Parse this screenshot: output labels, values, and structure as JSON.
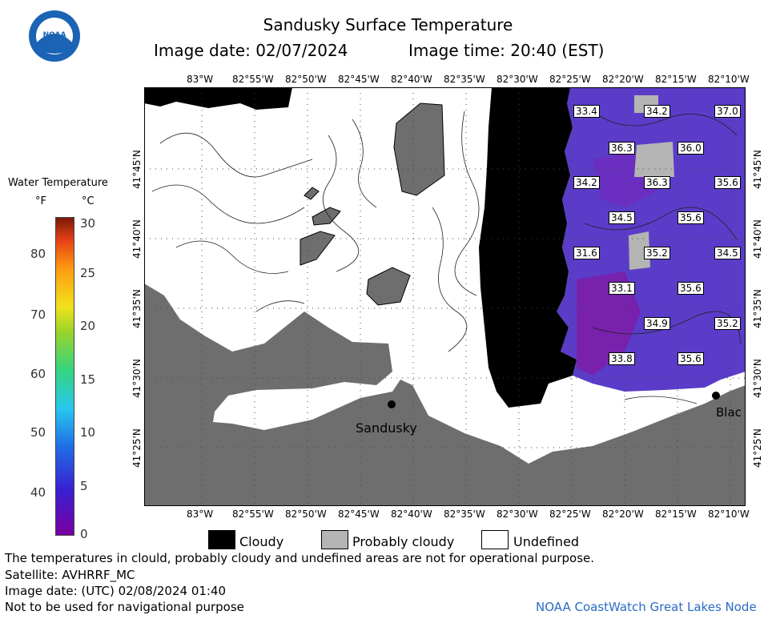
{
  "header": {
    "title": "Sandusky Surface Temperature",
    "image_date": "Image date: 02/07/2024",
    "image_time": "Image time: 20:40 (EST)"
  },
  "logo": {
    "text": "NOAA"
  },
  "colorbar": {
    "title": "Water Temperature",
    "unit_f": "°F",
    "unit_c": "°C",
    "f_ticks": [
      "80",
      "70",
      "60",
      "50",
      "40"
    ],
    "c_ticks": [
      "30",
      "25",
      "20",
      "15",
      "10",
      "5",
      "0"
    ]
  },
  "axes": {
    "lon_labels": [
      "83°W",
      "82°55'W",
      "82°50'W",
      "82°45'W",
      "82°40'W",
      "82°35'W",
      "82°30'W",
      "82°25'W",
      "82°20'W",
      "82°15'W",
      "82°10'W"
    ],
    "lat_labels": [
      "41°45'N",
      "41°40'N",
      "41°35'N",
      "41°30'N",
      "41°25'N"
    ]
  },
  "temperature_labels": [
    "33.4",
    "34.2",
    "37.0",
    "36.3",
    "36.0",
    "34.2",
    "36.3",
    "35.6",
    "34.5",
    "35.6",
    "31.6",
    "35.2",
    "34.5",
    "33.1",
    "35.6",
    "34.9",
    "35.2",
    "33.8",
    "35.6"
  ],
  "places": {
    "sandusky": "Sandusky",
    "blac": "Blac"
  },
  "legend": {
    "cloudy": "Cloudy",
    "probably_cloudy": "Probably cloudy",
    "undefined": "Undefined"
  },
  "footer": {
    "disclaimer": "The temperatures in clould, probably cloudy and undefined areas are not for operational purpose.",
    "satellite": "Satellite: AVHRRF_MC",
    "utc_date": "Image date: (UTC) 02/08/2024  01:40",
    "nav": "Not to be used for navigational purpose",
    "credit": "NOAA CoastWatch Great Lakes Node"
  },
  "colors": {
    "land": "#6e6e6e",
    "cloud": "#000000",
    "probably_cloudy": "#b4b4b4",
    "water_warm": "#5a3cc8",
    "water_cold": "#7a1ea8",
    "credit": "#2a6bc4"
  }
}
